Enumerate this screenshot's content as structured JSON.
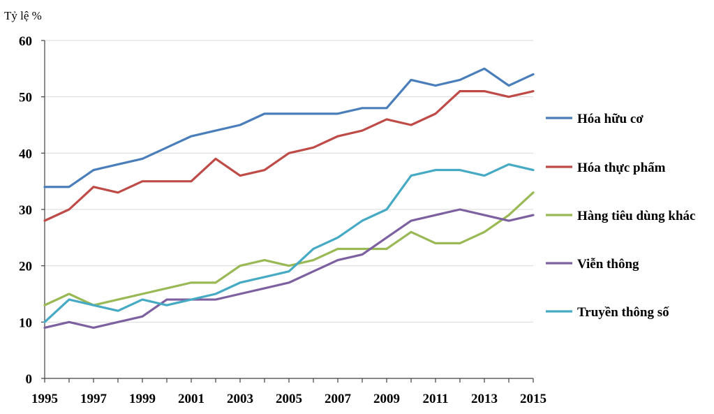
{
  "chart_data": {
    "type": "line",
    "title": "",
    "xlabel": "",
    "ylabel": "Tỷ lệ %",
    "ylim": [
      0,
      60
    ],
    "yticks": [
      0,
      10,
      20,
      30,
      40,
      50,
      60
    ],
    "xlim": [
      1995,
      2015
    ],
    "xticks": [
      1995,
      1997,
      1999,
      2001,
      2003,
      2005,
      2007,
      2009,
      2011,
      2013,
      2015
    ],
    "grid": true,
    "legend_position": "right",
    "x": [
      1995,
      1996,
      1997,
      1998,
      1999,
      2000,
      2001,
      2002,
      2003,
      2004,
      2005,
      2006,
      2007,
      2008,
      2009,
      2010,
      2011,
      2012,
      2013,
      2014,
      2015
    ],
    "series": [
      {
        "name": "Hóa hữu cơ",
        "color": "#4a7ebb",
        "values": [
          34,
          34,
          37,
          38,
          39,
          41,
          43,
          44,
          45,
          47,
          47,
          47,
          47,
          48,
          48,
          53,
          52,
          53,
          55,
          52,
          54
        ]
      },
      {
        "name": "Hóa thực phẩm",
        "color": "#be4b48",
        "values": [
          28,
          30,
          34,
          33,
          35,
          35,
          35,
          39,
          36,
          37,
          40,
          41,
          43,
          44,
          46,
          45,
          47,
          51,
          51,
          50,
          51
        ]
      },
      {
        "name": "Hàng tiêu dùng khác",
        "color": "#98b954",
        "values": [
          13,
          15,
          13,
          14,
          15,
          16,
          17,
          17,
          20,
          21,
          20,
          21,
          23,
          23,
          23,
          26,
          24,
          24,
          26,
          29,
          33
        ]
      },
      {
        "name": "Viễn thông",
        "color": "#7d60a0",
        "values": [
          9,
          10,
          9,
          10,
          11,
          14,
          14,
          14,
          15,
          16,
          17,
          19,
          21,
          22,
          25,
          28,
          29,
          30,
          29,
          28,
          29
        ]
      },
      {
        "name": "Truyền thông số",
        "color": "#46aac5",
        "values": [
          10,
          14,
          13,
          12,
          14,
          13,
          14,
          15,
          17,
          18,
          19,
          23,
          25,
          28,
          30,
          36,
          37,
          37,
          36,
          38,
          37
        ]
      }
    ]
  }
}
